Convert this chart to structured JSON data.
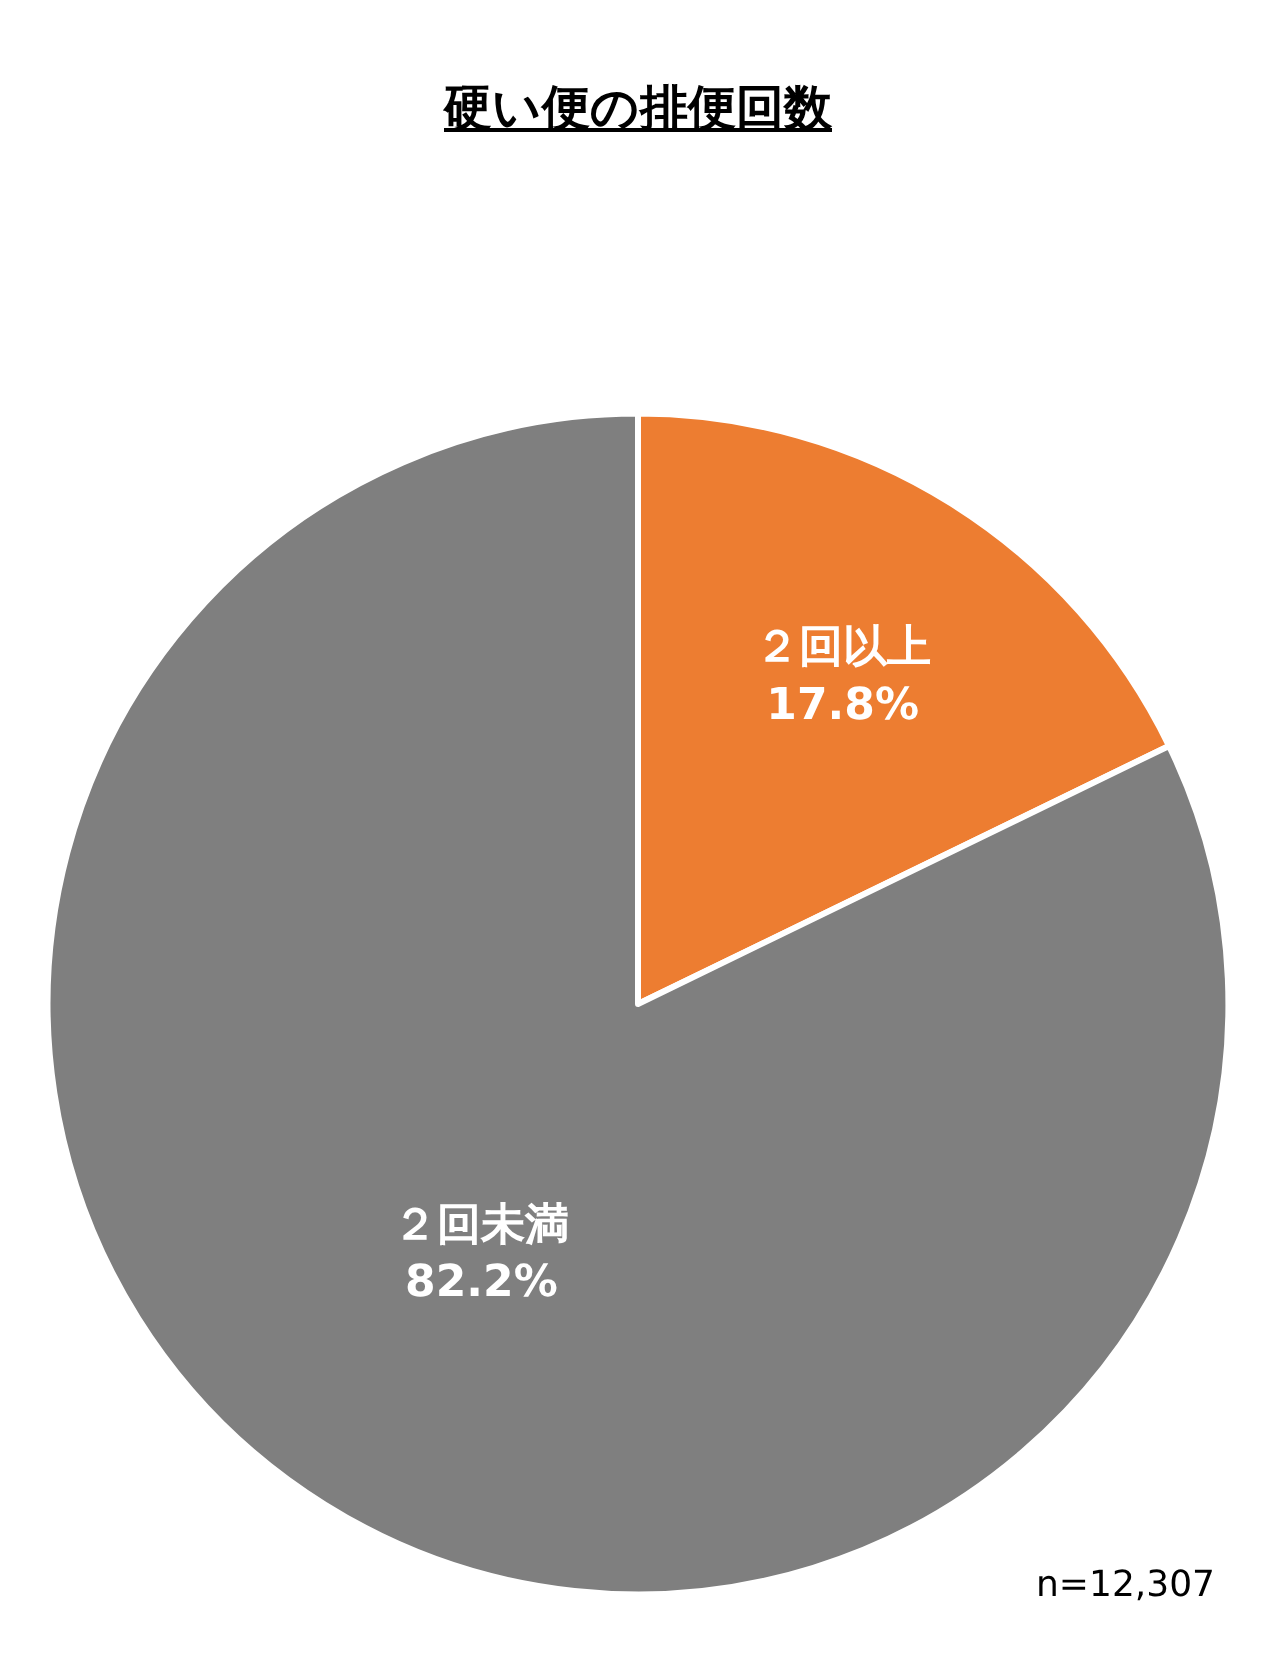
{
  "chart_data": {
    "type": "pie",
    "title": "硬い便の排便回数",
    "categories": [
      "２回以上",
      "２回未満"
    ],
    "values": [
      17.8,
      82.2
    ],
    "colors": [
      "#ed7d31",
      "#7f7f7f"
    ],
    "value_labels": [
      "17.8%",
      "82.2%"
    ],
    "legend": false,
    "annotations": [
      "n=12,307"
    ]
  }
}
